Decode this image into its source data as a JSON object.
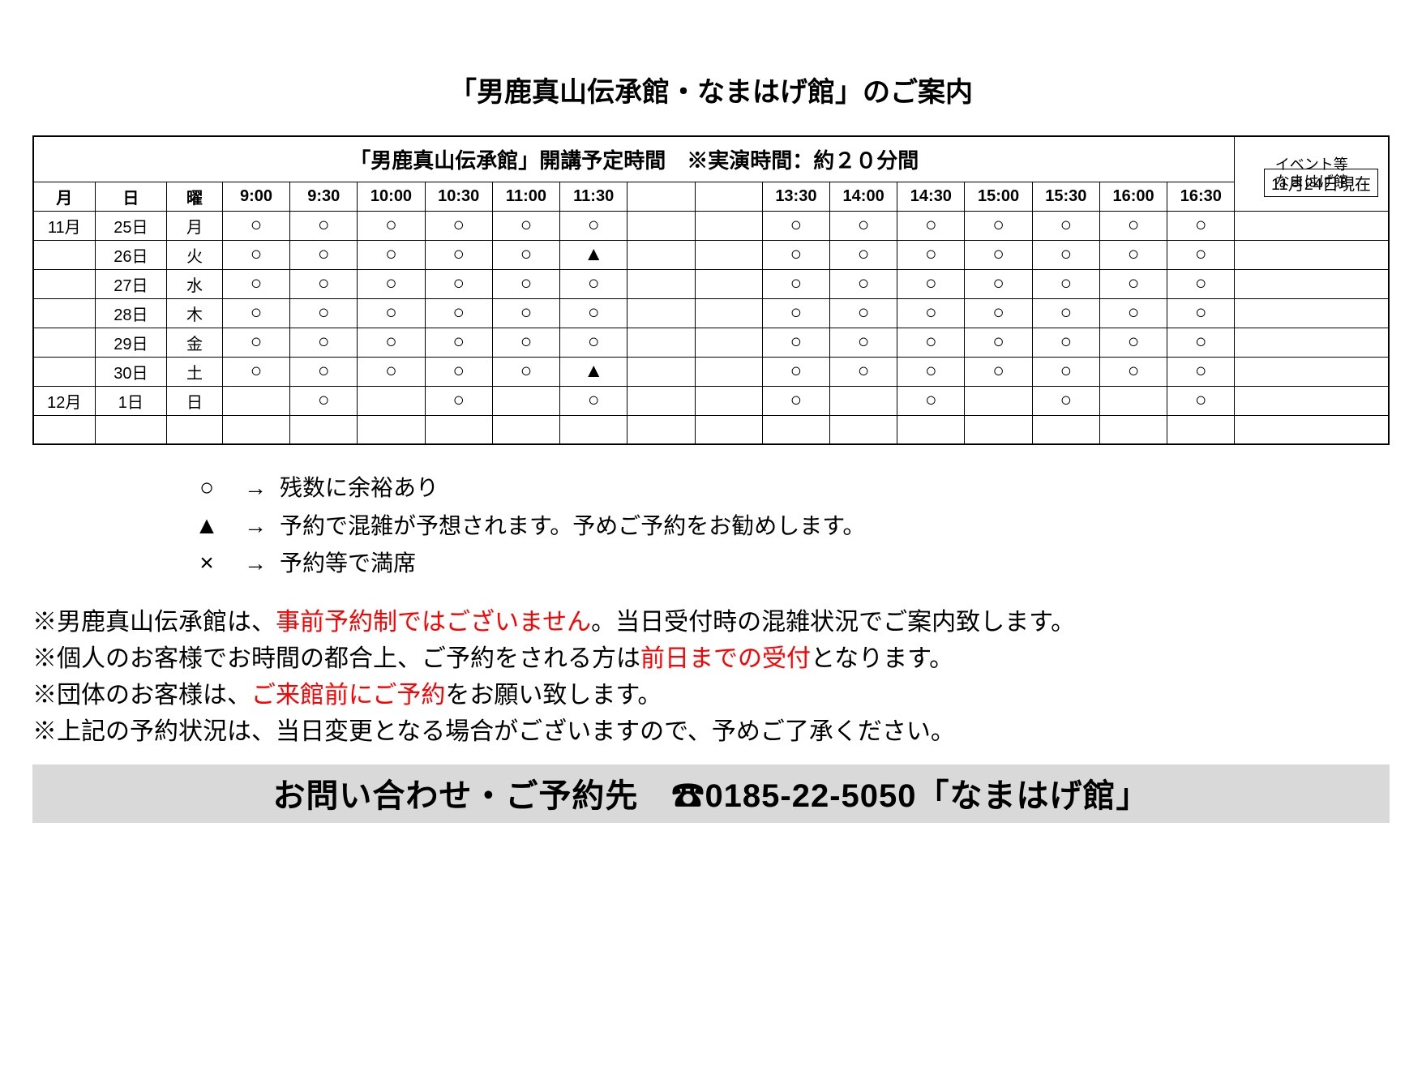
{
  "title": "「男鹿真山伝承館・なまはげ館」のご案内",
  "date_note": "11月24日現在",
  "table": {
    "main_header": "「男鹿真山伝承館」開講予定時間　※実演時間：約２０分間",
    "event_header": "イベント等\nなまはげ館",
    "head": {
      "month": "月",
      "day": "日",
      "dow": "曜",
      "times": [
        "9:00",
        "9:30",
        "10:00",
        "10:30",
        "11:00",
        "11:30",
        "",
        "",
        "13:30",
        "14:00",
        "14:30",
        "15:00",
        "15:30",
        "16:00",
        "16:30"
      ]
    },
    "rows": [
      {
        "month": "11月",
        "day": "25日",
        "dow": "月",
        "slots": [
          "○",
          "○",
          "○",
          "○",
          "○",
          "○",
          "",
          "",
          "○",
          "○",
          "○",
          "○",
          "○",
          "○",
          "○"
        ],
        "event": ""
      },
      {
        "month": "",
        "day": "26日",
        "dow": "火",
        "slots": [
          "○",
          "○",
          "○",
          "○",
          "○",
          "▲",
          "",
          "",
          "○",
          "○",
          "○",
          "○",
          "○",
          "○",
          "○"
        ],
        "event": ""
      },
      {
        "month": "",
        "day": "27日",
        "dow": "水",
        "slots": [
          "○",
          "○",
          "○",
          "○",
          "○",
          "○",
          "",
          "",
          "○",
          "○",
          "○",
          "○",
          "○",
          "○",
          "○"
        ],
        "event": ""
      },
      {
        "month": "",
        "day": "28日",
        "dow": "木",
        "slots": [
          "○",
          "○",
          "○",
          "○",
          "○",
          "○",
          "",
          "",
          "○",
          "○",
          "○",
          "○",
          "○",
          "○",
          "○"
        ],
        "event": ""
      },
      {
        "month": "",
        "day": "29日",
        "dow": "金",
        "slots": [
          "○",
          "○",
          "○",
          "○",
          "○",
          "○",
          "",
          "",
          "○",
          "○",
          "○",
          "○",
          "○",
          "○",
          "○"
        ],
        "event": ""
      },
      {
        "month": "",
        "day": "30日",
        "dow": "土",
        "slots": [
          "○",
          "○",
          "○",
          "○",
          "○",
          "▲",
          "",
          "",
          "○",
          "○",
          "○",
          "○",
          "○",
          "○",
          "○"
        ],
        "event": ""
      },
      {
        "month": "12月",
        "day": "1日",
        "dow": "日",
        "slots": [
          "",
          "○",
          "",
          "○",
          "",
          "○",
          "",
          "",
          "○",
          "",
          "○",
          "",
          "○",
          "",
          "○"
        ],
        "event": ""
      },
      {
        "month": "",
        "day": "",
        "dow": "",
        "slots": [
          "",
          "",
          "",
          "",
          "",
          "",
          "",
          "",
          "",
          "",
          "",
          "",
          "",
          "",
          ""
        ],
        "event": ""
      }
    ]
  },
  "legend": [
    {
      "sym": "○",
      "arrow": "→",
      "text": "残数に余裕あり"
    },
    {
      "sym": "▲",
      "arrow": "→",
      "text": "予約で混雑が予想されます。予めご予約をお勧めします。"
    },
    {
      "sym": "×",
      "arrow": "→",
      "text": "予約等で満席"
    }
  ],
  "notes": {
    "n1a": "※男鹿真山伝承館は、",
    "n1r": "事前予約制ではございません",
    "n1b": "。当日受付時の混雑状況でご案内致します。",
    "n2a": "※個人のお客様でお時間の都合上、ご予約をされる方は",
    "n2r": "前日までの受付",
    "n2b": "となります。",
    "n3a": "※団体のお客様は、",
    "n3r": "ご来館前にご予約",
    "n3b": "をお願い致します。",
    "n4": "※上記の予約状況は、当日変更となる場合がございますので、予めご了承ください。"
  },
  "footer": {
    "label": "お問い合わせ・ご予約先　",
    "phone_icon": "☎",
    "phone": "0185-22-5050",
    "place": "「なまはげ館」"
  }
}
